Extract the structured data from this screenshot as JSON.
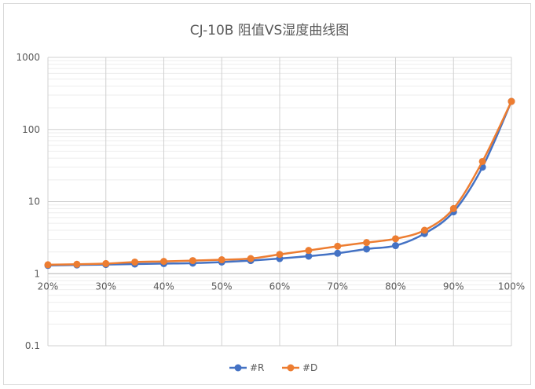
{
  "chart_data": {
    "type": "line",
    "title": "CJ-10B 阻值VS湿度曲线图",
    "xlabel": "",
    "ylabel": "",
    "x_ticks": [
      "20%",
      "30%",
      "40%",
      "50%",
      "60%",
      "70%",
      "80%",
      "90%",
      "100%"
    ],
    "x_range": [
      20,
      100
    ],
    "y_scale": "log",
    "y_range": [
      0.1,
      1000
    ],
    "y_ticks": [
      "0.1",
      "1",
      "10",
      "100",
      "1000"
    ],
    "grid": "on",
    "legend_position": "bottom",
    "x": [
      20,
      25,
      30,
      35,
      40,
      45,
      50,
      55,
      60,
      65,
      70,
      75,
      80,
      85,
      90,
      95,
      100
    ],
    "series": [
      {
        "name": "#R",
        "color": "#4472c4",
        "values": [
          1.3,
          1.32,
          1.34,
          1.36,
          1.38,
          1.4,
          1.45,
          1.52,
          1.62,
          1.75,
          1.92,
          2.2,
          2.45,
          3.6,
          7.2,
          30,
          245
        ]
      },
      {
        "name": "#D",
        "color": "#ed7d31",
        "values": [
          1.33,
          1.35,
          1.38,
          1.45,
          1.48,
          1.52,
          1.56,
          1.62,
          1.85,
          2.1,
          2.4,
          2.7,
          3.05,
          4.0,
          8.0,
          36,
          245
        ]
      }
    ]
  }
}
